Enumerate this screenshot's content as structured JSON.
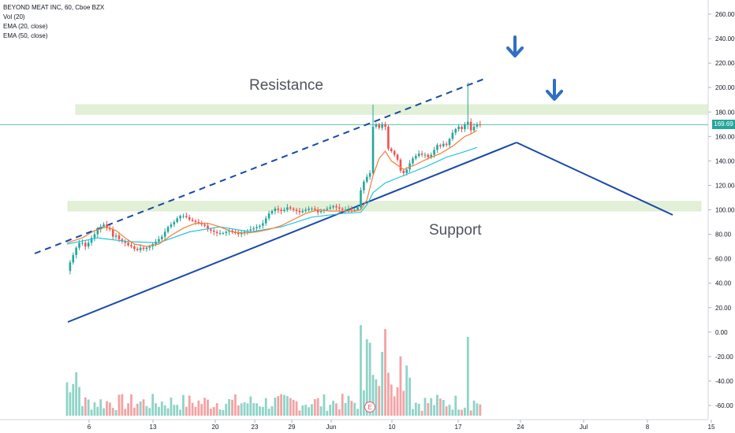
{
  "legend": {
    "title": "BEYOND MEAT INC, 60, Cboe BZX",
    "vol": "Vol (20)",
    "ema20": "EMA (20, close)",
    "ema50": "EMA (50, close)"
  },
  "annotations": {
    "resistance": "Resistance",
    "support": "Support",
    "earnings_badge": "E"
  },
  "current_price": "169.69",
  "colors": {
    "up": "#26a69a",
    "down": "#ef5350",
    "ema20": "#f57c3a",
    "ema50": "#26c6da",
    "trendline": "#1848a8",
    "zone": "#e3f0d8",
    "arrow": "#2f6fc4"
  },
  "icons": [
    "arrow-down-icon",
    "arrow-down-icon"
  ],
  "chart_data": {
    "type": "candlestick",
    "y_axis_ticks": [
      260,
      240,
      220,
      200,
      180,
      160,
      140,
      120,
      100,
      80,
      60,
      40,
      20,
      0,
      -20,
      -40,
      -60
    ],
    "y_axis_labels": [
      "260.00",
      "240.00",
      "220.00",
      "200.00",
      "180.00",
      "160.00",
      "140.00",
      "120.00",
      "100.00",
      "80.00",
      "60.00",
      "40.00",
      "20.00",
      "0.00",
      "-20.00",
      "-40.00",
      "-60.00"
    ],
    "ylim": [
      -73,
      272
    ],
    "x_axis_labels": [
      "6",
      "13",
      "20",
      "23",
      "29",
      "Jun",
      "10",
      "17",
      "24",
      "Jul",
      "8",
      "15"
    ],
    "grid": true,
    "zones": [
      {
        "name": "resistance",
        "low": 178,
        "high": 186
      },
      {
        "name": "support",
        "low": 99,
        "high": 107
      }
    ],
    "ema20_points": [
      [
        0,
        73
      ],
      [
        5,
        77
      ],
      [
        9,
        83
      ],
      [
        13,
        86
      ],
      [
        16,
        83
      ],
      [
        19,
        77
      ],
      [
        22,
        72
      ],
      [
        26,
        70
      ],
      [
        30,
        72
      ],
      [
        34,
        79
      ],
      [
        38,
        85
      ],
      [
        42,
        89
      ],
      [
        46,
        89
      ],
      [
        50,
        86
      ],
      [
        54,
        82
      ],
      [
        58,
        81
      ],
      [
        62,
        82
      ],
      [
        66,
        84
      ],
      [
        70,
        87
      ],
      [
        74,
        92
      ],
      [
        78,
        97
      ],
      [
        82,
        100
      ],
      [
        86,
        99
      ],
      [
        90,
        99
      ],
      [
        94,
        99
      ],
      [
        96,
        100
      ],
      [
        98,
        108
      ],
      [
        100,
        128
      ],
      [
        102,
        142
      ],
      [
        104,
        148
      ],
      [
        106,
        140
      ],
      [
        110,
        133
      ],
      [
        114,
        137
      ],
      [
        118,
        142
      ],
      [
        122,
        146
      ],
      [
        126,
        152
      ],
      [
        130,
        160
      ],
      [
        132,
        162
      ],
      [
        134,
        165
      ]
    ],
    "ema50_points": [
      [
        0,
        72
      ],
      [
        10,
        77
      ],
      [
        20,
        74
      ],
      [
        30,
        73
      ],
      [
        40,
        82
      ],
      [
        50,
        86
      ],
      [
        60,
        82
      ],
      [
        70,
        86
      ],
      [
        80,
        94
      ],
      [
        90,
        97
      ],
      [
        96,
        98
      ],
      [
        98,
        104
      ],
      [
        100,
        114
      ],
      [
        104,
        122
      ],
      [
        110,
        128
      ],
      [
        118,
        136
      ],
      [
        124,
        143
      ],
      [
        128,
        146
      ],
      [
        134,
        151
      ]
    ],
    "price_path": [
      [
        0,
        50
      ],
      [
        1,
        57
      ],
      [
        2,
        63
      ],
      [
        3,
        69
      ],
      [
        4,
        73
      ],
      [
        5,
        73
      ],
      [
        6,
        70
      ],
      [
        7,
        73
      ],
      [
        8,
        77
      ],
      [
        9,
        80
      ],
      [
        10,
        84
      ],
      [
        11,
        86
      ],
      [
        12,
        88
      ],
      [
        13,
        85
      ],
      [
        14,
        84
      ],
      [
        15,
        78
      ],
      [
        16,
        79
      ],
      [
        17,
        76
      ],
      [
        18,
        74
      ],
      [
        19,
        73
      ],
      [
        20,
        71
      ],
      [
        21,
        70
      ],
      [
        22,
        68
      ],
      [
        23,
        67
      ],
      [
        24,
        69
      ],
      [
        25,
        68
      ],
      [
        26,
        69
      ],
      [
        27,
        70
      ],
      [
        28,
        72
      ],
      [
        29,
        74
      ],
      [
        30,
        76
      ],
      [
        31,
        78
      ],
      [
        32,
        82
      ],
      [
        33,
        86
      ],
      [
        34,
        88
      ],
      [
        35,
        90
      ],
      [
        36,
        93
      ],
      [
        37,
        95
      ],
      [
        38,
        95
      ],
      [
        39,
        94
      ],
      [
        40,
        92
      ],
      [
        41,
        91
      ],
      [
        42,
        90
      ],
      [
        43,
        89
      ],
      [
        44,
        88
      ],
      [
        45,
        87
      ],
      [
        46,
        84
      ],
      [
        47,
        83
      ],
      [
        48,
        82
      ],
      [
        49,
        81
      ],
      [
        50,
        81
      ],
      [
        51,
        81
      ],
      [
        52,
        82
      ],
      [
        53,
        83
      ],
      [
        54,
        82
      ],
      [
        55,
        81
      ],
      [
        56,
        80
      ],
      [
        57,
        81
      ],
      [
        58,
        82
      ],
      [
        59,
        83
      ],
      [
        60,
        84
      ],
      [
        61,
        85
      ],
      [
        62,
        86
      ],
      [
        63,
        87
      ],
      [
        64,
        89
      ],
      [
        65,
        93
      ],
      [
        66,
        97
      ],
      [
        67,
        99
      ],
      [
        68,
        101
      ],
      [
        69,
        100
      ],
      [
        70,
        99
      ],
      [
        71,
        100
      ],
      [
        72,
        102
      ],
      [
        73,
        101
      ],
      [
        74,
        100
      ],
      [
        75,
        99
      ],
      [
        76,
        98
      ],
      [
        77,
        99
      ],
      [
        78,
        100
      ],
      [
        79,
        101
      ],
      [
        80,
        101
      ],
      [
        81,
        100
      ],
      [
        82,
        98
      ],
      [
        83,
        99
      ],
      [
        84,
        100
      ],
      [
        85,
        101
      ],
      [
        86,
        102
      ],
      [
        87,
        103
      ],
      [
        88,
        102
      ],
      [
        89,
        101
      ],
      [
        90,
        100
      ],
      [
        91,
        100
      ],
      [
        92,
        101
      ],
      [
        93,
        100
      ],
      [
        94,
        100
      ],
      [
        95,
        102
      ],
      [
        96,
        116
      ],
      [
        97,
        123
      ],
      [
        98,
        127
      ],
      [
        99,
        130
      ],
      [
        100,
        168
      ],
      [
        101,
        170
      ],
      [
        102,
        167
      ],
      [
        103,
        170
      ],
      [
        104,
        168
      ],
      [
        105,
        150
      ],
      [
        106,
        148
      ],
      [
        107,
        145
      ],
      [
        108,
        141
      ],
      [
        109,
        132
      ],
      [
        110,
        130
      ],
      [
        111,
        133
      ],
      [
        112,
        138
      ],
      [
        113,
        142
      ],
      [
        114,
        144
      ],
      [
        115,
        146
      ],
      [
        116,
        145
      ],
      [
        117,
        145
      ],
      [
        118,
        143
      ],
      [
        119,
        145
      ],
      [
        120,
        149
      ],
      [
        121,
        153
      ],
      [
        122,
        152
      ],
      [
        123,
        154
      ],
      [
        124,
        153
      ],
      [
        125,
        158
      ],
      [
        126,
        163
      ],
      [
        127,
        166
      ],
      [
        128,
        168
      ],
      [
        129,
        166
      ],
      [
        130,
        170
      ],
      [
        131,
        172
      ],
      [
        132,
        165
      ],
      [
        133,
        168
      ],
      [
        134,
        170
      ],
      [
        135,
        169.69
      ]
    ],
    "spike": {
      "index": 131,
      "high": 204,
      "low": 166
    },
    "n_candles": 136,
    "volume_note": "volume histogram at bottom of pane"
  }
}
